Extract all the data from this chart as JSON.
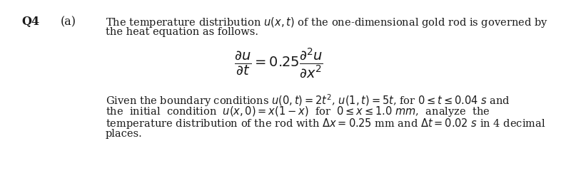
{
  "q_label": "Q4",
  "part_label": "(a)",
  "line1": "The temperature distribution $u(x, t)$ of the one-dimensional gold rod is governed by",
  "line2": "the heat equation as follows.",
  "equation": "$\\dfrac{\\partial u}{\\partial t} = 0.25\\dfrac{\\partial^2 u}{\\partial x^2}$",
  "para_line1": "Given the boundary conditions $u(0, t) = 2t^2$, $u(1, t) = 5t$, for $0 \\leq t \\leq 0.04$ $s$ and",
  "para_line2": "the  initial  condition  $u(x, 0) = x(1-x)$  for  $0 \\leq x \\leq 1.0$ $mm$,  analyze  the",
  "para_line3": "temperature distribution of the rod with $\\Delta x = 0.25$ mm and $\\Delta t = 0.02$ $s$ in 4 decimal",
  "para_line4": "places.",
  "bg_color": "#ffffff",
  "text_color": "#1a1a1a",
  "font_size_main": 10.5,
  "font_size_q": 11.5,
  "font_size_eq": 14
}
